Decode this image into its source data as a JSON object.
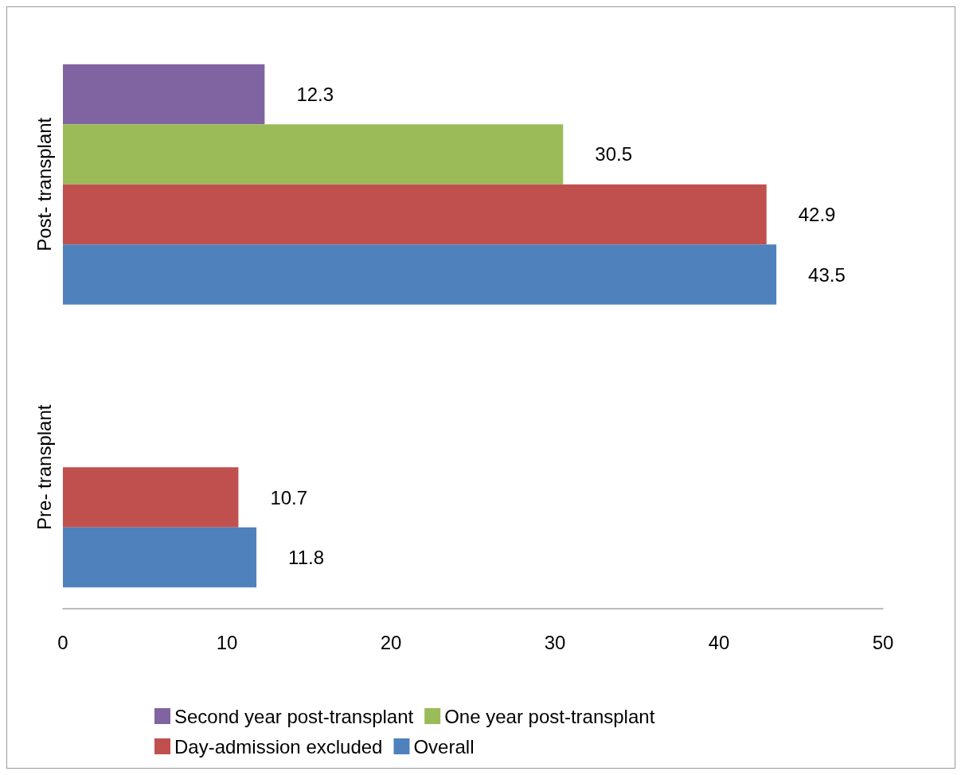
{
  "chart_data": {
    "type": "bar",
    "orientation": "horizontal",
    "categories": [
      "Post- transplant",
      "Pre- transplant"
    ],
    "series": [
      {
        "name": "Second year post-transplant",
        "color": "#8064a2",
        "values": [
          12.3,
          null
        ]
      },
      {
        "name": "One year post-transplant",
        "color": "#9bbb59",
        "values": [
          30.5,
          null
        ]
      },
      {
        "name": "Day-admission excluded",
        "color": "#c0504d",
        "values": [
          42.9,
          10.7
        ]
      },
      {
        "name": "Overall",
        "color": "#4f81bd",
        "values": [
          43.5,
          11.8
        ]
      }
    ],
    "xlim": [
      0,
      50
    ],
    "xticks": [
      0,
      10,
      20,
      30,
      40,
      50
    ],
    "data_labels": true,
    "grid": false,
    "legend": "bottom"
  }
}
